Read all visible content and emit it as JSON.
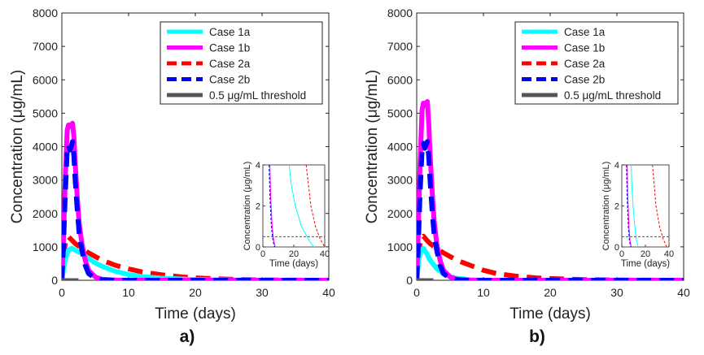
{
  "chart_data": [
    {
      "type": "line",
      "panel_label": "a)",
      "xlabel": "Time (days)",
      "ylabel": "Concentration (μg/mL)",
      "xlim": [
        0,
        40
      ],
      "ylim": [
        0,
        8000
      ],
      "xticks": [
        "0",
        "10",
        "20",
        "30",
        "40"
      ],
      "yticks": [
        "0",
        "1000",
        "2000",
        "3000",
        "4000",
        "5000",
        "6000",
        "7000",
        "8000"
      ],
      "grid": false,
      "legend_position": "top-right",
      "series": [
        {
          "name": "Case 1a",
          "color": "#00ffff",
          "style": "solid",
          "x": [
            0,
            0.3,
            0.6,
            1,
            1.5,
            2,
            3,
            4,
            5,
            6,
            8,
            10,
            12,
            15,
            20,
            25,
            30,
            40
          ],
          "y": [
            0,
            400,
            700,
            900,
            960,
            900,
            800,
            650,
            520,
            420,
            270,
            170,
            110,
            60,
            20,
            5,
            0,
            0
          ]
        },
        {
          "name": "Case 1b",
          "color": "#ff00ff",
          "style": "solid",
          "x": [
            0,
            0.2,
            0.5,
            0.8,
            1.0,
            1.2,
            1.4,
            1.6,
            1.8,
            2.0,
            2.3,
            2.6,
            3.0,
            3.5,
            4,
            5,
            6,
            8,
            10,
            40
          ],
          "y": [
            0,
            1000,
            3000,
            4500,
            4650,
            4600,
            4650,
            4700,
            4300,
            3500,
            2500,
            1700,
            1100,
            600,
            300,
            100,
            30,
            5,
            0,
            0
          ]
        },
        {
          "name": "Case 2a",
          "color": "#ff0000",
          "style": "dashed",
          "x": [
            0,
            0.3,
            0.6,
            1,
            1.5,
            2,
            3,
            4,
            6,
            8,
            10,
            12,
            15,
            18,
            20,
            25,
            30,
            35,
            40
          ],
          "y": [
            0,
            800,
            1250,
            1300,
            1200,
            1100,
            950,
            820,
            600,
            450,
            340,
            250,
            160,
            100,
            70,
            30,
            10,
            3,
            0
          ]
        },
        {
          "name": "Case 2b",
          "color": "#0000ff",
          "style": "dashed",
          "x": [
            0,
            0.2,
            0.5,
            0.8,
            1.0,
            1.2,
            1.4,
            1.6,
            1.8,
            2.0,
            2.3,
            2.6,
            3.0,
            3.5,
            4,
            5,
            6,
            8,
            40
          ],
          "y": [
            0,
            800,
            2500,
            3900,
            4050,
            3900,
            4000,
            4150,
            3700,
            3000,
            2100,
            1400,
            900,
            450,
            200,
            60,
            15,
            0,
            0
          ]
        },
        {
          "name": "0.5 μg/mL threshold",
          "color": "#555555",
          "style": "solid",
          "x": [
            0,
            2.5
          ],
          "y": [
            0,
            0
          ]
        }
      ],
      "inset": {
        "xlabel": "Time (days)",
        "ylabel": "Concentration (μg/mL)",
        "xlim": [
          0,
          40
        ],
        "ylim": [
          0,
          4
        ],
        "xticks": [
          "0",
          "20",
          "40"
        ],
        "yticks": [
          "0",
          "2",
          "4"
        ],
        "series": [
          {
            "name": "Case 1a",
            "color": "#00ffff",
            "style": "solid",
            "x": [
              17,
              18.5,
              21,
              25,
              30,
              33
            ],
            "y": [
              4,
              3,
              2,
              1,
              0.3,
              0
            ]
          },
          {
            "name": "Case 1b",
            "color": "#ff00ff",
            "style": "solid",
            "x": [
              4.5,
              5,
              6,
              7,
              8
            ],
            "y": [
              4,
              2.5,
              1,
              0.3,
              0
            ]
          },
          {
            "name": "Case 2a",
            "color": "#ff0000",
            "style": "dashed",
            "x": [
              28,
              29.5,
              31,
              34,
              37,
              40
            ],
            "y": [
              4,
              3,
              2,
              1,
              0.4,
              0
            ]
          },
          {
            "name": "Case 2b",
            "color": "#0000ff",
            "style": "dashed",
            "x": [
              4,
              4.5,
              5.5,
              6.5,
              7.5
            ],
            "y": [
              4,
              2.5,
              1,
              0.3,
              0
            ]
          },
          {
            "name": "0.5 μg/mL threshold",
            "color": "#555555",
            "style": "dashed",
            "x": [
              0,
              40
            ],
            "y": [
              0.5,
              0.5
            ]
          }
        ]
      }
    },
    {
      "type": "line",
      "panel_label": "b)",
      "xlabel": "Time (days)",
      "ylabel": "Concentration (μg/mL)",
      "xlim": [
        0,
        40
      ],
      "ylim": [
        0,
        8000
      ],
      "xticks": [
        "0",
        "10",
        "20",
        "30",
        "40"
      ],
      "yticks": [
        "0",
        "1000",
        "2000",
        "3000",
        "4000",
        "5000",
        "6000",
        "7000",
        "8000"
      ],
      "grid": false,
      "legend_position": "top-right",
      "series": [
        {
          "name": "Case 1a",
          "color": "#00ffff",
          "style": "solid",
          "x": [
            0,
            0.3,
            0.6,
            1,
            1.5,
            2,
            3,
            4,
            5,
            6,
            8,
            10,
            40
          ],
          "y": [
            0,
            600,
            900,
            950,
            800,
            600,
            350,
            200,
            110,
            60,
            15,
            0,
            0
          ]
        },
        {
          "name": "Case 1b",
          "color": "#ff00ff",
          "style": "solid",
          "x": [
            0,
            0.2,
            0.5,
            0.8,
            1.0,
            1.2,
            1.4,
            1.6,
            1.8,
            2.0,
            2.3,
            2.6,
            3.0,
            3.5,
            4,
            5,
            6,
            8,
            40
          ],
          "y": [
            0,
            1200,
            3500,
            5100,
            5300,
            5250,
            5300,
            5350,
            4700,
            3800,
            2700,
            1800,
            1100,
            600,
            300,
            100,
            30,
            0,
            0
          ]
        },
        {
          "name": "Case 2a",
          "color": "#ff0000",
          "style": "dashed",
          "x": [
            0,
            0.3,
            0.6,
            1,
            1.5,
            2,
            3,
            4,
            6,
            8,
            10,
            12,
            15,
            18,
            20,
            25,
            30,
            40
          ],
          "y": [
            0,
            800,
            1250,
            1320,
            1200,
            1100,
            950,
            820,
            600,
            450,
            300,
            200,
            120,
            70,
            50,
            20,
            5,
            0
          ]
        },
        {
          "name": "Case 2b",
          "color": "#0000ff",
          "style": "dashed",
          "x": [
            0,
            0.2,
            0.5,
            0.8,
            1.0,
            1.2,
            1.4,
            1.6,
            1.8,
            2.0,
            2.3,
            2.6,
            3.0,
            3.5,
            4,
            5,
            6,
            8,
            40
          ],
          "y": [
            0,
            800,
            2600,
            3900,
            4100,
            3950,
            4050,
            4150,
            3700,
            3000,
            2100,
            1400,
            900,
            450,
            200,
            60,
            15,
            0,
            0
          ]
        },
        {
          "name": "0.5 μg/mL threshold",
          "color": "#555555",
          "style": "solid",
          "x": [
            0,
            2.5
          ],
          "y": [
            0,
            0
          ]
        }
      ],
      "inset": {
        "xlabel": "Time (days)",
        "ylabel": "Concentration (μg/mL)",
        "xlim": [
          0,
          40
        ],
        "ylim": [
          0,
          4
        ],
        "xticks": [
          "0",
          "20",
          "40"
        ],
        "yticks": [
          "0",
          "2",
          "4"
        ],
        "series": [
          {
            "name": "Case 1a",
            "color": "#00ffff",
            "style": "solid",
            "x": [
              8,
              8.5,
              9.5,
              11,
              12.5,
              14
            ],
            "y": [
              4,
              3,
              2,
              1,
              0.3,
              0
            ]
          },
          {
            "name": "Case 1b",
            "color": "#ff00ff",
            "style": "solid",
            "x": [
              4.5,
              5,
              6,
              7,
              8
            ],
            "y": [
              4,
              2.5,
              1,
              0.3,
              0
            ]
          },
          {
            "name": "Case 2a",
            "color": "#ff0000",
            "style": "dashed",
            "x": [
              26,
              27.5,
              29,
              32,
              35,
              38
            ],
            "y": [
              4,
              3,
              2,
              1,
              0.4,
              0
            ]
          },
          {
            "name": "Case 2b",
            "color": "#0000ff",
            "style": "dashed",
            "x": [
              4,
              4.5,
              5.5,
              6.5,
              7.5
            ],
            "y": [
              4,
              2.5,
              1,
              0.3,
              0
            ]
          },
          {
            "name": "0.5 μg/mL threshold",
            "color": "#555555",
            "style": "dashed",
            "x": [
              0,
              40
            ],
            "y": [
              0.5,
              0.5
            ]
          }
        ]
      }
    }
  ]
}
